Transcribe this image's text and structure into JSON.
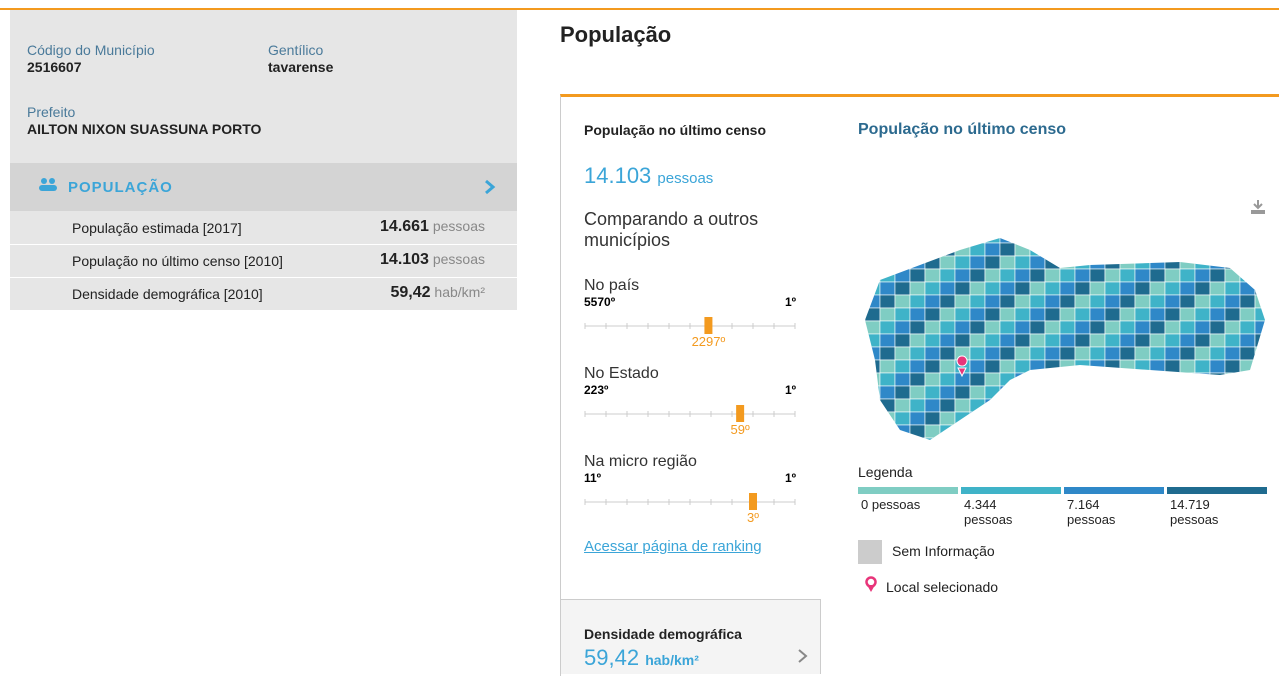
{
  "municipio": {
    "codigo_label": "Código do Município",
    "codigo": "2516607",
    "gentilico_label": "Gentílico",
    "gentilico": "tavarense",
    "prefeito_label": "Prefeito",
    "prefeito": "AILTON NIXON SUASSUNA PORTO"
  },
  "sidebar": {
    "section": "POPULAÇÃO",
    "rows": [
      {
        "label": "População estimada [2017]",
        "value": "14.661",
        "unit": "pessoas"
      },
      {
        "label": "População no último censo [2010]",
        "value": "14.103",
        "unit": "pessoas"
      },
      {
        "label": "Densidade demográfica [2010]",
        "value": "59,42",
        "unit": "hab/km²"
      }
    ]
  },
  "page_title": "População",
  "card": {
    "title": "População no último censo",
    "value": "14.103",
    "unit": "pessoas",
    "compare_title": "Comparando a outros municípios",
    "rankings": [
      {
        "label": "No país",
        "min": {
          "value": 5570,
          "label": "5570º"
        },
        "max": {
          "value": 1,
          "label": "1º"
        },
        "position": {
          "value": 2297,
          "label": "2297º"
        }
      },
      {
        "label": "No Estado",
        "min": {
          "value": 223,
          "label": "223º"
        },
        "max": {
          "value": 1,
          "label": "1º"
        },
        "position": {
          "value": 59,
          "label": "59º"
        }
      },
      {
        "label": "Na micro região",
        "min": {
          "value": 11,
          "label": "11º"
        },
        "max": {
          "value": 1,
          "label": "1º"
        },
        "position": {
          "value": 3,
          "label": "3º"
        }
      }
    ],
    "link": "Acessar página de ranking"
  },
  "next_card": {
    "title": "Densidade demográfica",
    "value": "59,42",
    "unit": "hab/km²"
  },
  "map": {
    "title": "População no último censo",
    "legend_title": "Legenda",
    "legend": [
      {
        "label": "0 pessoas",
        "color": "#7fcdc3"
      },
      {
        "label": "4.344 pessoas",
        "color": "#3fb3c8"
      },
      {
        "label": "7.164 pessoas",
        "color": "#2f88c8"
      },
      {
        "label": "14.719 pessoas",
        "color": "#1f6b8f"
      }
    ],
    "no_info": "Sem Informação",
    "selected": "Local selecionado"
  }
}
